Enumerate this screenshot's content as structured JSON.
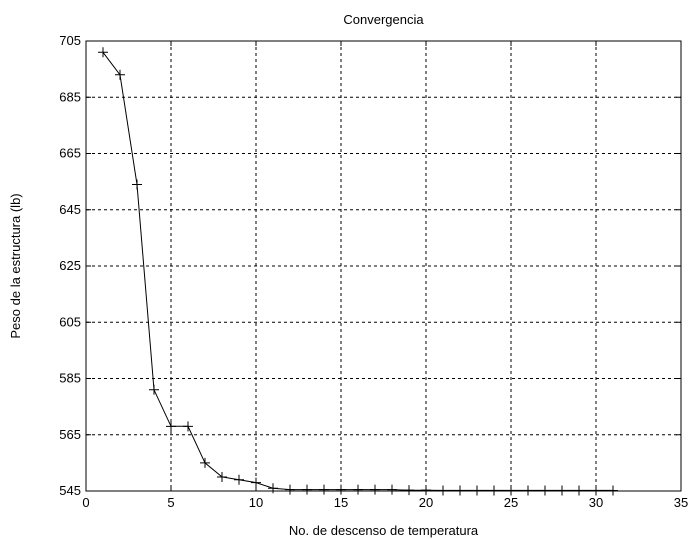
{
  "chart_data": {
    "type": "line",
    "title": "Convergencia",
    "xlabel": "No. de descenso de temperatura",
    "ylabel": "Peso de la estructura (lb)",
    "xlim": [
      0,
      35
    ],
    "ylim": [
      545,
      705
    ],
    "xticks": [
      0,
      5,
      10,
      15,
      20,
      25,
      30,
      35
    ],
    "yticks": [
      545,
      565,
      585,
      605,
      625,
      645,
      665,
      685,
      705
    ],
    "grid": true,
    "marker": "plus",
    "line_color": "#000000",
    "series": [
      {
        "x": [
          1,
          2,
          3,
          4,
          5,
          6,
          7,
          8,
          9,
          10,
          11,
          12,
          13,
          14,
          15,
          16,
          17,
          18,
          19,
          20,
          21,
          22,
          23,
          24,
          25,
          26,
          27,
          28,
          29,
          30,
          31
        ],
        "y": [
          701,
          693,
          654,
          581,
          568,
          568,
          555,
          550,
          549,
          548,
          546,
          545.5,
          545.5,
          545.5,
          545.5,
          545.5,
          545.5,
          545.5,
          545.3,
          545.3,
          545.2,
          545.2,
          545.2,
          545.2,
          545.2,
          545.2,
          545.2,
          545.2,
          545.2,
          545.2,
          545.2
        ]
      }
    ]
  }
}
